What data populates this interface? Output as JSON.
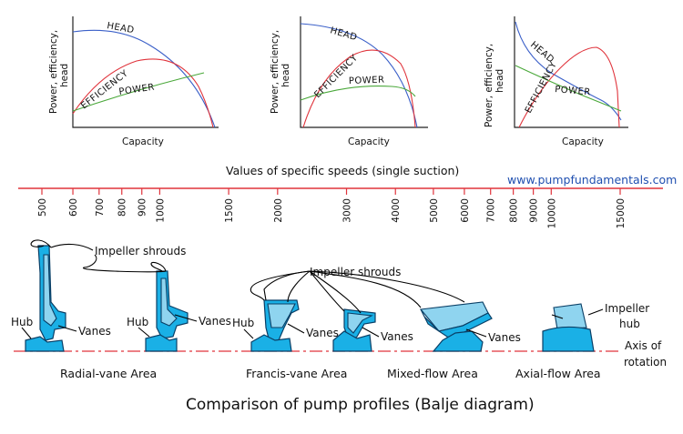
{
  "title": "Comparison of pump profiles (Balje diagram)",
  "website": "www.pumpfundamentals.com",
  "scale": {
    "title": "Values of specific speeds (single suction)",
    "ticks": [
      "500",
      "600",
      "700",
      "800",
      "900",
      "1000",
      "1500",
      "2000",
      "3000",
      "4000",
      "5000",
      "6000",
      "7000",
      "8000",
      "9000",
      "10000",
      "15000"
    ]
  },
  "charts": [
    {
      "ylabel": "Power, efficiency,",
      "ylabel2": "head",
      "xlabel": "Capacity",
      "head": "HEAD",
      "efficiency": "EFFICIENCY",
      "power": "POWER"
    },
    {
      "ylabel": "Power, efficiency,",
      "ylabel2": "head",
      "xlabel": "Capacity",
      "head": "HEAD",
      "efficiency": "EFFICIENCY",
      "power": "POWER"
    },
    {
      "ylabel": "Power, efficiency,",
      "ylabel2": "head",
      "xlabel": "Capacity",
      "head": "HEAD",
      "efficiency": "EFFICIENCY",
      "power": "POWER"
    }
  ],
  "labels": {
    "impeller_shrouds": "Impeller shrouds",
    "hub": "Hub",
    "vanes": "Vanes",
    "impeller": "Impeller",
    "impeller_hub": "hub",
    "axis_of": "Axis of",
    "rotation": "rotation"
  },
  "areas": {
    "radial": "Radial-vane Area",
    "francis": "Francis-vane Area",
    "mixed": "Mixed-flow Area",
    "axial": "Axial-flow Area"
  },
  "colors": {
    "head": "#3a5fc8",
    "efficiency": "#e0343c",
    "power": "#4aa83a",
    "scale_line": "#e0343c",
    "impeller": "#1ab0e6",
    "axis_line": "#e0343c"
  }
}
